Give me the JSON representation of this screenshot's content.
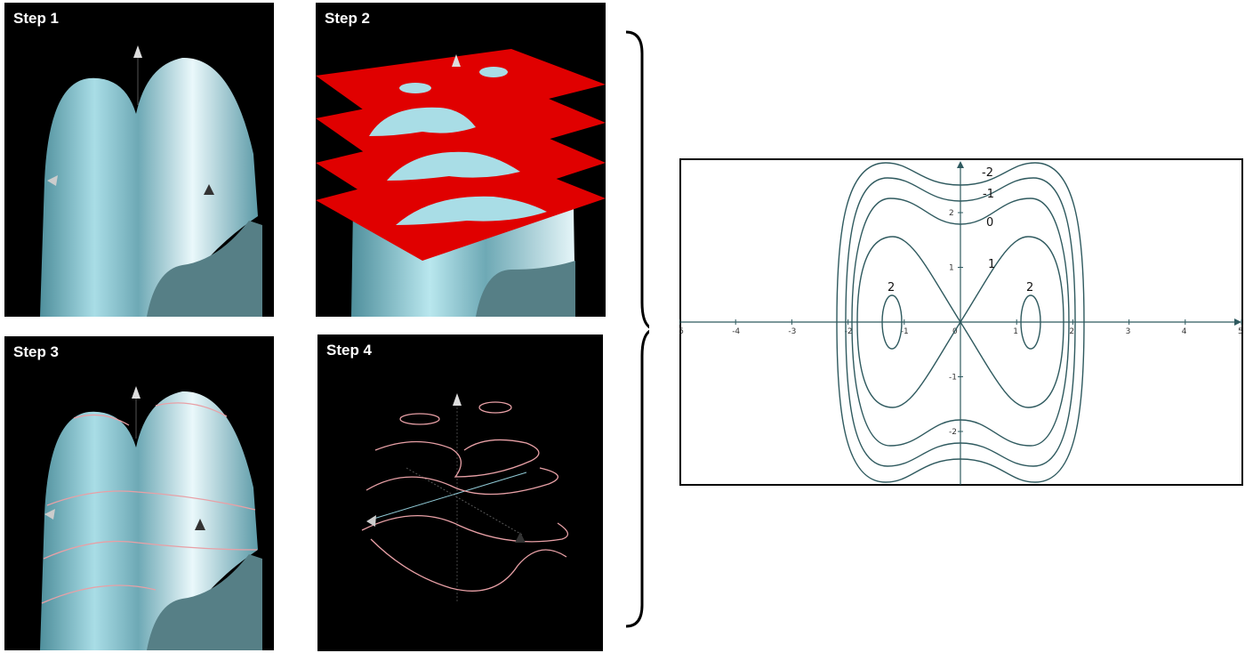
{
  "steps": [
    {
      "label": "Step 1"
    },
    {
      "label": "Step 2"
    },
    {
      "label": "Step 3"
    },
    {
      "label": "Step 4"
    }
  ],
  "colors": {
    "surface": "#8fc8d4",
    "slice_plane": "#e00000",
    "level_curve": "#e8a0a6",
    "contour_line": "#2f5a5f",
    "panel_bg": "#000000"
  },
  "chart_data": {
    "type": "contour",
    "xlim": [
      -5,
      5
    ],
    "ylim": [
      -3,
      3
    ],
    "x_ticks": [
      "-5",
      "-4",
      "-3",
      "-2",
      "-1",
      "0",
      "1",
      "2",
      "3",
      "4",
      "5"
    ],
    "y_ticks": [
      "-2",
      "-1",
      "1",
      "2"
    ],
    "levels": [
      {
        "label": "-2"
      },
      {
        "label": "-1"
      },
      {
        "label": "0"
      },
      {
        "label": "1"
      },
      {
        "label": "2"
      },
      {
        "label": "2"
      }
    ]
  }
}
